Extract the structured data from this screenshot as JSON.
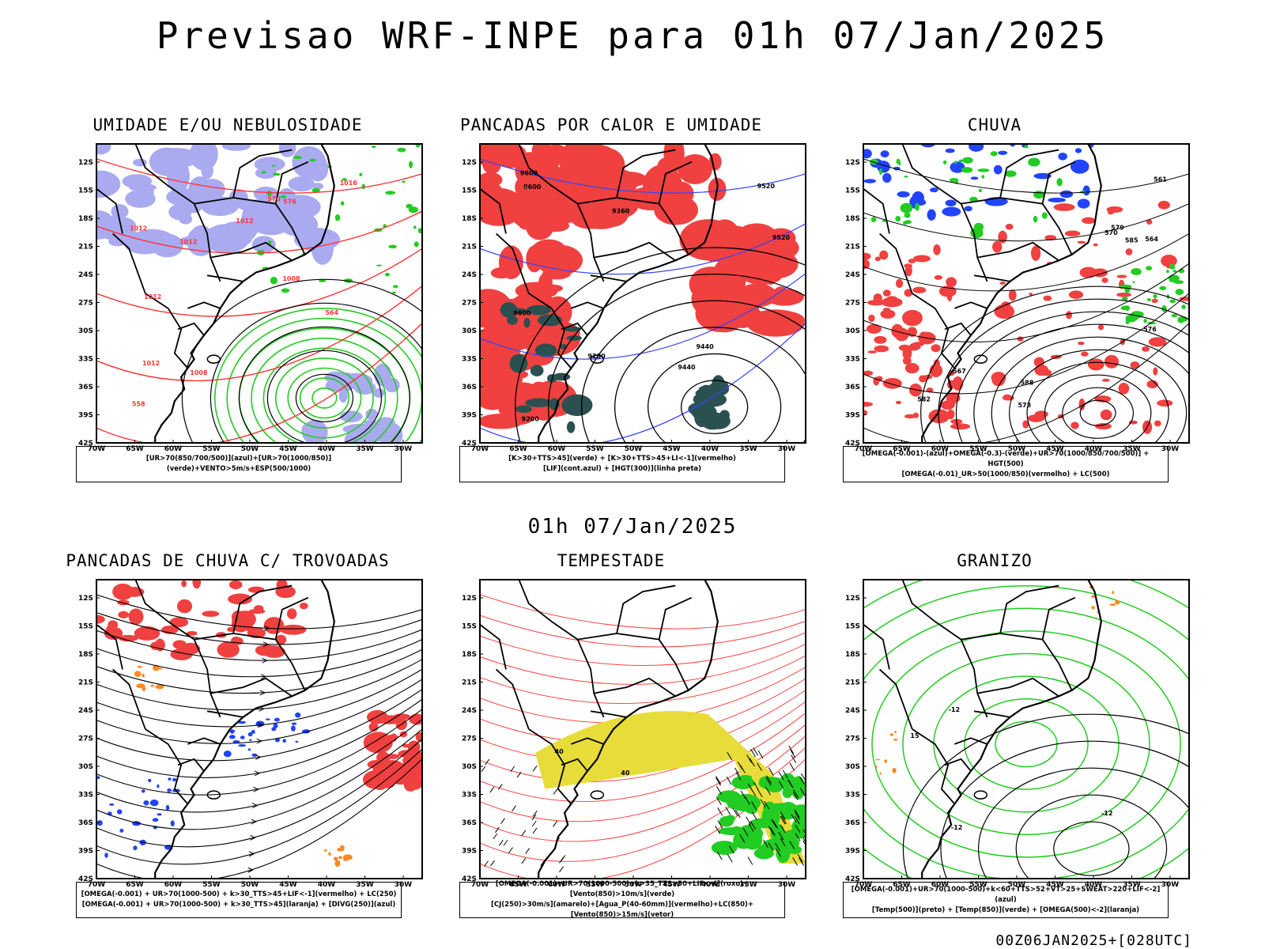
{
  "header": {
    "title": "Previsao WRF-INPE  para 01h 07/Jan/2025",
    "mid_label": "01h 07/Jan/2025",
    "footer": "00Z06JAN2025+[028UTC]"
  },
  "axes": {
    "lat_ticks": [
      "12S",
      "15S",
      "18S",
      "21S",
      "24S",
      "27S",
      "30S",
      "33S",
      "36S",
      "39S",
      "42S"
    ],
    "lon_ticks": [
      "70W",
      "65W",
      "60W",
      "55W",
      "50W",
      "45W",
      "40W",
      "35W",
      "30W"
    ]
  },
  "panels": [
    {
      "title": "UMIDADE E/OU NEBULOSIDADE",
      "legend": [
        "[UR>70(850/700/500)](azul)+[UR>70(1000/850)](verde)+VENTO>5m/s+ESP(500/1000)"
      ],
      "contour_labels": [
        "1012",
        "1008",
        "1012",
        "1012",
        "1012",
        "1012",
        "1016",
        "1008",
        "576",
        "570",
        "564",
        "558"
      ],
      "colors": {
        "fill": "#aaaaf0",
        "lines": "#22cc22",
        "red": "#ff3333"
      }
    },
    {
      "title": "PANCADAS POR CALOR E UMIDADE",
      "legend": [
        "[K>30+TTS>45](verde) + [K>30+TTS>45+LI<-1](vermelho)",
        "[LIF](cont.azul) + [HGT(300)](linha preta)"
      ],
      "contour_labels": [
        "9600",
        "9600",
        "9600",
        "9520",
        "9520",
        "9440",
        "9360",
        "9280",
        "9200",
        "9440"
      ],
      "colors": {
        "fill": "#f04040",
        "dark": "#2a5050",
        "blue": "#3344ff"
      }
    },
    {
      "title": "CHUVA",
      "legend": [
        "[OMEGA(-0.001)-(azul)+OMEGA(-0.3)-(verde)+UR>70(1000/850/700/500)] + HGT(500)",
        "[OMEGA(-0.01)_UR>50(1000/850)(vermelho) + LC(500)"
      ],
      "contour_labels": [
        "582",
        "579",
        "576",
        "573",
        "570",
        "567",
        "564",
        "561",
        "588",
        "585"
      ],
      "colors": {
        "red": "#f04040",
        "blue": "#2244ff",
        "green": "#22cc22"
      }
    },
    {
      "title": "PANCADAS DE CHUVA C/ TROVOADAS",
      "legend": [
        "[OMEGA(-0.001) + UR>70(1000-500) + k>30_TTS>45+LIF<-1](vermelho) + LC(250)",
        "[OMEGA(-0.001) + UR>70(1000-500) + k>30_TTS>45](laranja) + [DIVG(250)](azul)"
      ],
      "contour_labels": [],
      "colors": {
        "red": "#f04040",
        "blue": "#2244ff",
        "orange": "#ff8822"
      }
    },
    {
      "title": "TEMPESTADE",
      "legend": [
        "[OMEGA(-0.001)+UR>70(1000-500)+k>35_TTS>50+LIF<-4](roxo)+[Vento(850)>10m/s](verde)",
        "[CJ(250)>30m/s](amarelo)+[Agua_P(40-60mm)](vermelho)+LC(850)+[Vento(850)>15m/s](vetor)"
      ],
      "contour_labels": [
        "40",
        "40"
      ],
      "colors": {
        "yellow": "#e8dc3a",
        "green": "#22cc22",
        "red": "#ff4444"
      }
    },
    {
      "title": "GRANIZO",
      "legend": [
        "[OMEGA(-0.001)+UR>70(1000-500)+k<60+TTS>52+VT>25+SWEAT>220+LIF<-2](azul)",
        "[Temp(500)](preto) + [Temp(850)](verde) + [OMEGA(500)<-2](laranja)"
      ],
      "contour_labels": [
        "-12",
        "-12",
        "-12",
        "15"
      ],
      "colors": {
        "green": "#22cc22",
        "orange": "#ff8822"
      }
    }
  ]
}
